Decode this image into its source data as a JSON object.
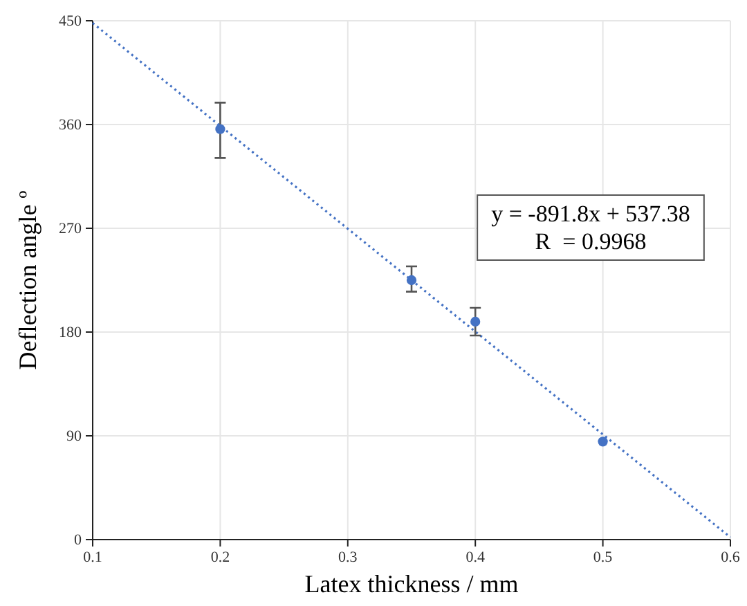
{
  "chart_data": {
    "type": "scatter",
    "xlabel": "Latex thickness / mm",
    "ylabel": "Deflection angle º",
    "xlim": [
      0.1,
      0.6
    ],
    "xticks": [
      0.1,
      0.2,
      0.3,
      0.4,
      0.5,
      0.6
    ],
    "ylim": [
      0,
      450
    ],
    "yticks": [
      0,
      90,
      180,
      270,
      360,
      450
    ],
    "grid": true,
    "marker": "circle",
    "series": [
      {
        "color": "#4472c4",
        "x": [
          0.2,
          0.35,
          0.4,
          0.5
        ],
        "values": [
          356,
          225,
          189,
          85
        ],
        "errors": [
          [
            331,
            379
          ],
          [
            215,
            237
          ],
          [
            177,
            201
          ],
          null
        ]
      },
      {
        "type": "line",
        "color": "#4472c4",
        "line_style": "dotted",
        "marker": "none",
        "x": [
          0.1,
          0.6
        ],
        "values": [
          448,
          2
        ]
      }
    ],
    "annotations": [
      "y = -891.8x + 537.38",
      "R  = 0.9968"
    ]
  }
}
